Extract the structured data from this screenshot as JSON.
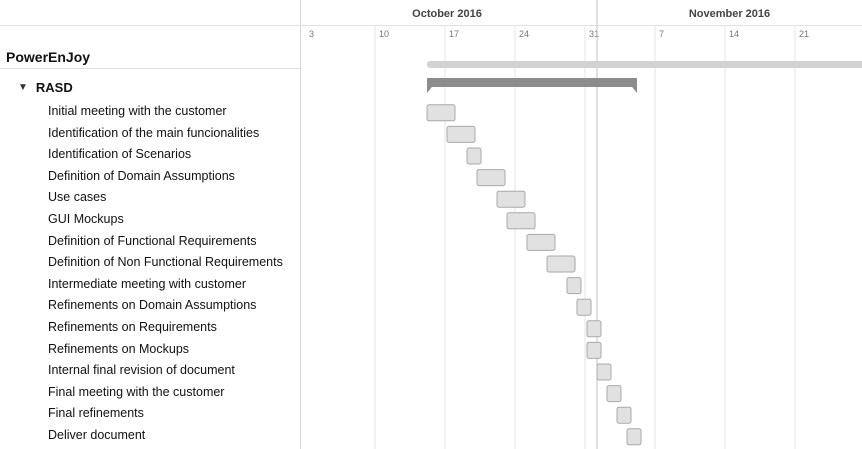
{
  "project": {
    "title": "PowerEnJoy"
  },
  "group": {
    "label": "RASD",
    "arrow": "▼"
  },
  "timeline": {
    "months": [
      {
        "label": "October 2016",
        "start_day": -2
      },
      {
        "label": "November 2016",
        "start_day": 29
      }
    ],
    "ticks": [
      {
        "label": "3",
        "day": 0
      },
      {
        "label": "10",
        "day": 7
      },
      {
        "label": "17",
        "day": 14
      },
      {
        "label": "24",
        "day": 21
      },
      {
        "label": "31",
        "day": 28
      },
      {
        "label": "7",
        "day": 35
      },
      {
        "label": "14",
        "day": 42
      },
      {
        "label": "21",
        "day": 49
      }
    ]
  },
  "summary": {
    "start_day": 12,
    "end_day": 33
  },
  "colors": {
    "task_fill": "#e1e1e1",
    "task_border": "#a9a9a9",
    "summary_bar": "#8c8c8c",
    "project_bar": "#d2d2d2",
    "gridline": "#e6e6e6",
    "month_line": "#c2c2c2"
  },
  "chart_data": {
    "type": "gantt",
    "title": "PowerEnJoy",
    "x_axis": "date",
    "tasks": [
      {
        "name": "Initial meeting with the customer",
        "start_day": 12,
        "end_day": 14
      },
      {
        "name": "Identification of the main funcionalities",
        "start_day": 14,
        "end_day": 16
      },
      {
        "name": "Identification of Scenarios",
        "start_day": 16,
        "end_day": 17
      },
      {
        "name": "Definition of Domain Assumptions",
        "start_day": 17,
        "end_day": 19
      },
      {
        "name": "Use cases",
        "start_day": 19,
        "end_day": 21
      },
      {
        "name": "GUI Mockups",
        "start_day": 20,
        "end_day": 22
      },
      {
        "name": "Definition of Functional Requirements",
        "start_day": 22,
        "end_day": 24
      },
      {
        "name": "Definition of Non Functional Requirements",
        "start_day": 24,
        "end_day": 26
      },
      {
        "name": "Intermediate meeting with customer",
        "start_day": 26,
        "end_day": 27
      },
      {
        "name": "Refinements on Domain Assumptions",
        "start_day": 27,
        "end_day": 28
      },
      {
        "name": "Refinements on Requirements",
        "start_day": 28,
        "end_day": 29
      },
      {
        "name": "Refinements on Mockups",
        "start_day": 28,
        "end_day": 29
      },
      {
        "name": "Internal final revision of document",
        "start_day": 29,
        "end_day": 30
      },
      {
        "name": "Final meeting with the customer",
        "start_day": 30,
        "end_day": 31
      },
      {
        "name": "Final refinements",
        "start_day": 31,
        "end_day": 32
      },
      {
        "name": "Deliver document",
        "start_day": 32,
        "end_day": 33
      }
    ]
  }
}
